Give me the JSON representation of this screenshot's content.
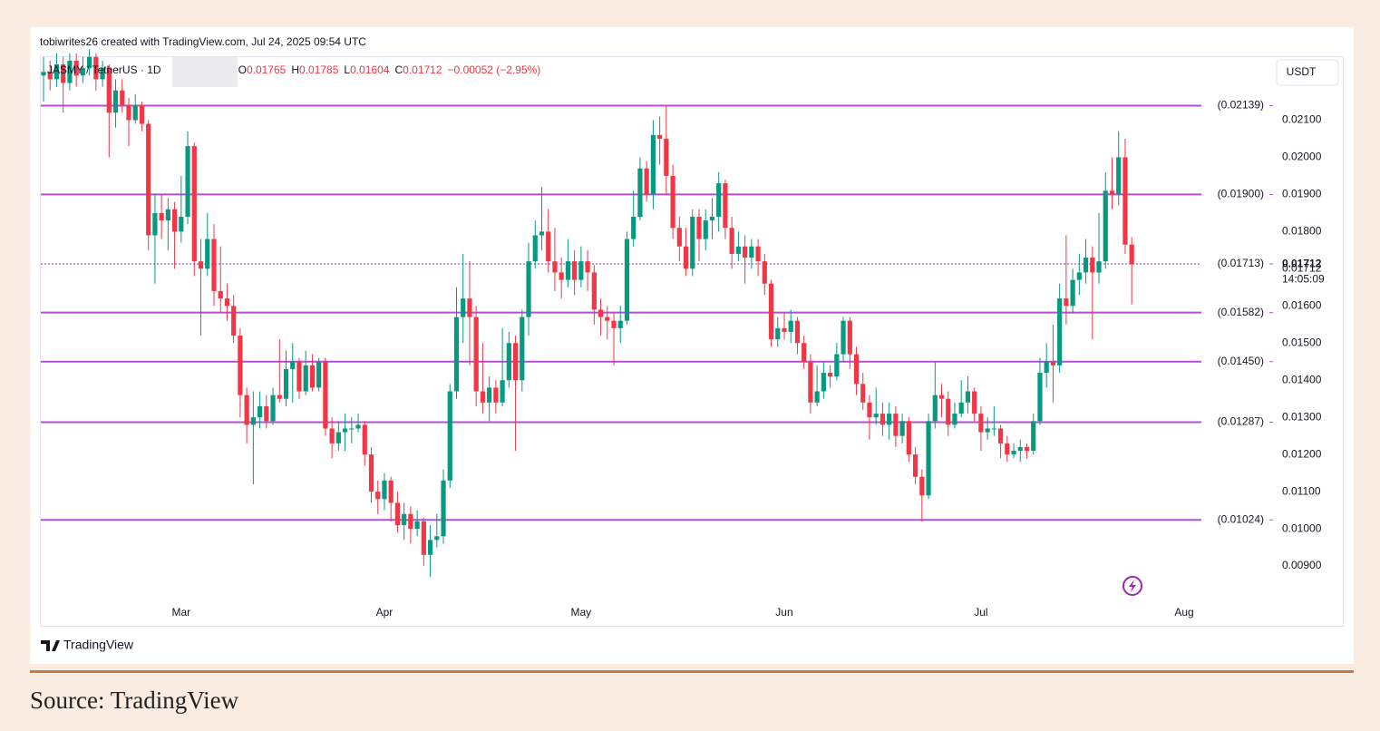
{
  "header": "tobiwrites26 created with TradingView.com, Jul 24, 2025 09:54 UTC",
  "chart_data": {
    "type": "candlestick",
    "symbol": "JASMY / TetherUS · 1D",
    "legend_values": [
      {
        "key": "O",
        "value": 0.01765
      },
      {
        "key": "H",
        "value": 0.01785
      },
      {
        "key": "L",
        "value": 0.01604
      },
      {
        "key": "C",
        "value": 0.01712
      }
    ],
    "change": "−0.00052 (−2.95%)",
    "currency": "USDT",
    "up_color": "#089981",
    "down_color": "#f23645",
    "level_color": "#b44fd1",
    "ylim": [
      0.00739,
      0.02272
    ],
    "yticks": [
      {
        "value": 0.009,
        "label": "0.00900"
      },
      {
        "value": 0.01,
        "label": "0.01000"
      },
      {
        "value": 0.011,
        "label": "0.01100"
      },
      {
        "value": 0.012,
        "label": "0.01200"
      },
      {
        "value": 0.013,
        "label": "0.01300"
      },
      {
        "value": 0.014,
        "label": "0.01400"
      },
      {
        "value": 0.015,
        "label": "0.01500"
      },
      {
        "value": 0.016,
        "label": "0.01600"
      },
      {
        "value": 0.017,
        "label": "0.01712"
      },
      {
        "value": 0.018,
        "label": "0.01800"
      },
      {
        "value": 0.019,
        "label": "0.01900"
      },
      {
        "value": 0.02,
        "label": "0.02000"
      },
      {
        "value": 0.021,
        "label": "0.02100"
      }
    ],
    "levels": [
      {
        "value": 0.02139,
        "label": "(0.02139)"
      },
      {
        "value": 0.019,
        "label": "(0.01900)"
      },
      {
        "value": 0.01713,
        "label": "(0.01713)",
        "dashed": true
      },
      {
        "value": 0.01582,
        "label": "(0.01582)"
      },
      {
        "value": 0.0145,
        "label": "(0.01450)"
      },
      {
        "value": 0.01287,
        "label": "(0.01287)"
      },
      {
        "value": 0.01024,
        "label": "(0.01024)"
      }
    ],
    "last_price": 0.01712,
    "countdown": "14:05:09",
    "categories": [
      null,
      null,
      null,
      null,
      null,
      null,
      null,
      null,
      null,
      null,
      null,
      null,
      null,
      null,
      null,
      null,
      null,
      null,
      null,
      null,
      null,
      "Mar",
      null,
      null,
      null,
      null,
      null,
      null,
      null,
      null,
      null,
      null,
      null,
      null,
      null,
      null,
      null,
      null,
      null,
      null,
      null,
      null,
      null,
      null,
      null,
      null,
      null,
      null,
      null,
      null,
      null,
      null,
      "Apr",
      null,
      null,
      null,
      null,
      null,
      null,
      null,
      null,
      null,
      null,
      null,
      null,
      null,
      null,
      null,
      null,
      null,
      null,
      null,
      null,
      null,
      null,
      null,
      null,
      null,
      null,
      null,
      null,
      null,
      "May",
      null,
      null,
      null,
      null,
      null,
      null,
      null,
      null,
      null,
      null,
      null,
      null,
      null,
      null,
      null,
      null,
      null,
      null,
      null,
      null,
      null,
      null,
      null,
      null,
      null,
      null,
      null,
      null,
      null,
      null,
      "Jun",
      null,
      null,
      null,
      null,
      null,
      null,
      null,
      null,
      null,
      null,
      null,
      null,
      null,
      null,
      null,
      null,
      null,
      null,
      null,
      null,
      null,
      null,
      null,
      null,
      null,
      null,
      null,
      null,
      null,
      "Jul",
      null,
      null,
      null,
      null,
      null,
      null,
      null,
      null,
      null,
      null,
      null,
      null,
      null,
      null,
      null,
      null,
      null,
      null,
      null,
      null,
      null,
      null,
      null,
      null,
      null,
      null,
      null,
      null,
      null,
      null,
      "Aug"
    ],
    "ohlc": [
      [
        0.0222,
        0.0227,
        0.0215,
        0.0223
      ],
      [
        0.0223,
        0.0226,
        0.0218,
        0.0221
      ],
      [
        0.0221,
        0.0228,
        0.0219,
        0.0225
      ],
      [
        0.0225,
        0.0227,
        0.0212,
        0.022
      ],
      [
        0.022,
        0.0228,
        0.0218,
        0.0226
      ],
      [
        0.0226,
        0.0228,
        0.0219,
        0.0222
      ],
      [
        0.0222,
        0.0227,
        0.022,
        0.0224
      ],
      [
        0.0224,
        0.0229,
        0.0222,
        0.0227
      ],
      [
        0.0227,
        0.0228,
        0.0218,
        0.0221
      ],
      [
        0.0221,
        0.0226,
        0.0219,
        0.0224
      ],
      [
        0.0224,
        0.0225,
        0.02,
        0.0212
      ],
      [
        0.0212,
        0.0221,
        0.0208,
        0.0218
      ],
      [
        0.0218,
        0.0221,
        0.0212,
        0.0214
      ],
      [
        0.0214,
        0.0216,
        0.0203,
        0.021
      ],
      [
        0.021,
        0.0217,
        0.0209,
        0.0214
      ],
      [
        0.0214,
        0.0215,
        0.0207,
        0.0209
      ],
      [
        0.0209,
        0.021,
        0.0175,
        0.0179
      ],
      [
        0.0179,
        0.019,
        0.0166,
        0.0185
      ],
      [
        0.0185,
        0.019,
        0.0178,
        0.0183
      ],
      [
        0.0183,
        0.0189,
        0.0175,
        0.0186
      ],
      [
        0.0186,
        0.0188,
        0.017,
        0.018
      ],
      [
        0.018,
        0.0195,
        0.0177,
        0.0184
      ],
      [
        0.0184,
        0.0207,
        0.0182,
        0.0203
      ],
      [
        0.0203,
        0.0204,
        0.0168,
        0.0172
      ],
      [
        0.0172,
        0.0178,
        0.0152,
        0.017
      ],
      [
        0.017,
        0.0185,
        0.0168,
        0.0178
      ],
      [
        0.0178,
        0.0182,
        0.016,
        0.0164
      ],
      [
        0.0164,
        0.0176,
        0.0158,
        0.0162
      ],
      [
        0.0162,
        0.0166,
        0.0156,
        0.016
      ],
      [
        0.016,
        0.0163,
        0.015,
        0.0152
      ],
      [
        0.0152,
        0.0154,
        0.013,
        0.0136
      ],
      [
        0.0136,
        0.0138,
        0.0123,
        0.0128
      ],
      [
        0.0128,
        0.0137,
        0.0112,
        0.013
      ],
      [
        0.013,
        0.0137,
        0.0127,
        0.0133
      ],
      [
        0.0133,
        0.0136,
        0.0127,
        0.0129
      ],
      [
        0.0129,
        0.0138,
        0.0128,
        0.0136
      ],
      [
        0.0136,
        0.0151,
        0.0134,
        0.0135
      ],
      [
        0.0135,
        0.0148,
        0.0133,
        0.0143
      ],
      [
        0.0143,
        0.015,
        0.0134,
        0.0145
      ],
      [
        0.0145,
        0.0146,
        0.0135,
        0.0137
      ],
      [
        0.0137,
        0.0148,
        0.0136,
        0.0144
      ],
      [
        0.0144,
        0.0147,
        0.0137,
        0.0138
      ],
      [
        0.0138,
        0.0146,
        0.0137,
        0.0145
      ],
      [
        0.0145,
        0.0146,
        0.0125,
        0.0127
      ],
      [
        0.0127,
        0.013,
        0.0119,
        0.0123
      ],
      [
        0.0123,
        0.0129,
        0.0121,
        0.0126
      ],
      [
        0.0126,
        0.0131,
        0.0121,
        0.0127
      ],
      [
        0.0127,
        0.013,
        0.0123,
        0.0127
      ],
      [
        0.0127,
        0.0131,
        0.0126,
        0.0128
      ],
      [
        0.0128,
        0.0129,
        0.0117,
        0.012
      ],
      [
        0.012,
        0.0122,
        0.0107,
        0.011
      ],
      [
        0.011,
        0.0113,
        0.0104,
        0.0108
      ],
      [
        0.0108,
        0.0115,
        0.0105,
        0.0113
      ],
      [
        0.0113,
        0.0114,
        0.0102,
        0.0107
      ],
      [
        0.0107,
        0.011,
        0.0099,
        0.0101
      ],
      [
        0.0101,
        0.0107,
        0.0097,
        0.0104
      ],
      [
        0.0104,
        0.0106,
        0.0096,
        0.01
      ],
      [
        0.01,
        0.0105,
        0.0098,
        0.0102
      ],
      [
        0.0102,
        0.0103,
        0.009,
        0.0093
      ],
      [
        0.0093,
        0.0101,
        0.0087,
        0.0097
      ],
      [
        0.0097,
        0.0104,
        0.0095,
        0.0098
      ],
      [
        0.0098,
        0.0116,
        0.0096,
        0.0113
      ],
      [
        0.0113,
        0.0139,
        0.0111,
        0.0137
      ],
      [
        0.0137,
        0.0165,
        0.0135,
        0.0157
      ],
      [
        0.0157,
        0.0174,
        0.015,
        0.0162
      ],
      [
        0.0162,
        0.0172,
        0.0144,
        0.0157
      ],
      [
        0.0157,
        0.016,
        0.0133,
        0.0137
      ],
      [
        0.0137,
        0.015,
        0.0131,
        0.0134
      ],
      [
        0.0134,
        0.0141,
        0.0129,
        0.0138
      ],
      [
        0.0138,
        0.014,
        0.0131,
        0.0134
      ],
      [
        0.0134,
        0.0154,
        0.0133,
        0.014
      ],
      [
        0.014,
        0.0153,
        0.0138,
        0.015
      ],
      [
        0.015,
        0.0152,
        0.0121,
        0.014
      ],
      [
        0.014,
        0.0159,
        0.0137,
        0.0157
      ],
      [
        0.0157,
        0.0177,
        0.0152,
        0.0172
      ],
      [
        0.0172,
        0.0183,
        0.017,
        0.0179
      ],
      [
        0.0179,
        0.0192,
        0.0175,
        0.018
      ],
      [
        0.018,
        0.0186,
        0.0169,
        0.0172
      ],
      [
        0.0172,
        0.0181,
        0.0164,
        0.0169
      ],
      [
        0.0169,
        0.0173,
        0.0162,
        0.0167
      ],
      [
        0.0167,
        0.0178,
        0.0165,
        0.0172
      ],
      [
        0.0172,
        0.0175,
        0.0163,
        0.0167
      ],
      [
        0.0167,
        0.0176,
        0.0165,
        0.0172
      ],
      [
        0.0172,
        0.0175,
        0.0164,
        0.0169
      ],
      [
        0.0169,
        0.0171,
        0.0155,
        0.0159
      ],
      [
        0.0159,
        0.0162,
        0.0152,
        0.0157
      ],
      [
        0.0157,
        0.016,
        0.0151,
        0.0156
      ],
      [
        0.0156,
        0.0158,
        0.0144,
        0.0154
      ],
      [
        0.0154,
        0.016,
        0.015,
        0.0156
      ],
      [
        0.0156,
        0.018,
        0.0155,
        0.0178
      ],
      [
        0.0178,
        0.0191,
        0.0176,
        0.0184
      ],
      [
        0.0184,
        0.02,
        0.0183,
        0.0197
      ],
      [
        0.0197,
        0.0199,
        0.0188,
        0.019
      ],
      [
        0.019,
        0.021,
        0.0186,
        0.0206
      ],
      [
        0.0206,
        0.0211,
        0.0198,
        0.0205
      ],
      [
        0.0205,
        0.0214,
        0.019,
        0.0195
      ],
      [
        0.0195,
        0.0198,
        0.0178,
        0.0181
      ],
      [
        0.0181,
        0.0184,
        0.0172,
        0.0176
      ],
      [
        0.0176,
        0.0181,
        0.0168,
        0.017
      ],
      [
        0.017,
        0.0186,
        0.0168,
        0.0184
      ],
      [
        0.0184,
        0.0186,
        0.0172,
        0.0178
      ],
      [
        0.0178,
        0.0186,
        0.0175,
        0.0183
      ],
      [
        0.0183,
        0.0189,
        0.0178,
        0.0184
      ],
      [
        0.0184,
        0.0196,
        0.018,
        0.0193
      ],
      [
        0.0193,
        0.0194,
        0.0178,
        0.0181
      ],
      [
        0.0181,
        0.0184,
        0.017,
        0.0174
      ],
      [
        0.0174,
        0.018,
        0.0172,
        0.0176
      ],
      [
        0.0176,
        0.0179,
        0.0166,
        0.0173
      ],
      [
        0.0173,
        0.0178,
        0.017,
        0.0176
      ],
      [
        0.0176,
        0.0178,
        0.0168,
        0.0172
      ],
      [
        0.0172,
        0.0174,
        0.0163,
        0.0166
      ],
      [
        0.0166,
        0.0167,
        0.0149,
        0.0151
      ],
      [
        0.0151,
        0.0157,
        0.0149,
        0.0154
      ],
      [
        0.0154,
        0.0158,
        0.0151,
        0.0153
      ],
      [
        0.0153,
        0.0159,
        0.015,
        0.0156
      ],
      [
        0.0156,
        0.0157,
        0.0147,
        0.015
      ],
      [
        0.015,
        0.0152,
        0.0143,
        0.0145
      ],
      [
        0.0145,
        0.0147,
        0.0131,
        0.0134
      ],
      [
        0.0134,
        0.0144,
        0.0133,
        0.0137
      ],
      [
        0.0137,
        0.0145,
        0.0135,
        0.0142
      ],
      [
        0.0142,
        0.0144,
        0.0138,
        0.0141
      ],
      [
        0.0141,
        0.015,
        0.014,
        0.0147
      ],
      [
        0.0147,
        0.0157,
        0.0145,
        0.0156
      ],
      [
        0.0156,
        0.0157,
        0.0143,
        0.0147
      ],
      [
        0.0147,
        0.0149,
        0.0136,
        0.0139
      ],
      [
        0.0139,
        0.0142,
        0.0132,
        0.0134
      ],
      [
        0.0134,
        0.0136,
        0.0124,
        0.013
      ],
      [
        0.013,
        0.0138,
        0.0128,
        0.0131
      ],
      [
        0.0131,
        0.0134,
        0.0125,
        0.0128
      ],
      [
        0.0128,
        0.0134,
        0.0124,
        0.0131
      ],
      [
        0.0131,
        0.0133,
        0.0122,
        0.0125
      ],
      [
        0.0125,
        0.0131,
        0.0123,
        0.0129
      ],
      [
        0.0129,
        0.013,
        0.0118,
        0.012
      ],
      [
        0.012,
        0.0122,
        0.0112,
        0.0114
      ],
      [
        0.0114,
        0.0116,
        0.0102,
        0.0109
      ],
      [
        0.0109,
        0.0131,
        0.0108,
        0.0129
      ],
      [
        0.0129,
        0.0145,
        0.0127,
        0.0136
      ],
      [
        0.0136,
        0.0139,
        0.013,
        0.0135
      ],
      [
        0.0135,
        0.0137,
        0.0125,
        0.0128
      ],
      [
        0.0128,
        0.0134,
        0.0127,
        0.0131
      ],
      [
        0.0131,
        0.014,
        0.013,
        0.0134
      ],
      [
        0.0134,
        0.0141,
        0.0131,
        0.0137
      ],
      [
        0.0137,
        0.0138,
        0.0129,
        0.0131
      ],
      [
        0.0131,
        0.0133,
        0.0121,
        0.0126
      ],
      [
        0.0126,
        0.013,
        0.0124,
        0.0127
      ],
      [
        0.0127,
        0.0133,
        0.0125,
        0.0127
      ],
      [
        0.0127,
        0.0128,
        0.0119,
        0.0123
      ],
      [
        0.0123,
        0.0125,
        0.0118,
        0.012
      ],
      [
        0.012,
        0.0123,
        0.0119,
        0.0121
      ],
      [
        0.0121,
        0.0124,
        0.0118,
        0.0122
      ],
      [
        0.0122,
        0.0123,
        0.0119,
        0.0121
      ],
      [
        0.0121,
        0.0131,
        0.012,
        0.0129
      ],
      [
        0.0129,
        0.0146,
        0.0128,
        0.0142
      ],
      [
        0.0142,
        0.015,
        0.0138,
        0.0145
      ],
      [
        0.0145,
        0.0155,
        0.0134,
        0.0144
      ],
      [
        0.0144,
        0.0166,
        0.0142,
        0.0162
      ],
      [
        0.0162,
        0.0179,
        0.0155,
        0.016
      ],
      [
        0.016,
        0.017,
        0.0158,
        0.0167
      ],
      [
        0.0167,
        0.0174,
        0.0163,
        0.0169
      ],
      [
        0.0169,
        0.0178,
        0.0166,
        0.0173
      ],
      [
        0.0173,
        0.0176,
        0.0151,
        0.0169
      ],
      [
        0.0169,
        0.0185,
        0.0166,
        0.0172
      ],
      [
        0.0172,
        0.0196,
        0.017,
        0.0191
      ],
      [
        0.0191,
        0.02,
        0.0186,
        0.019
      ],
      [
        0.019,
        0.0207,
        0.0187,
        0.02
      ],
      [
        0.02,
        0.0205,
        0.0174,
        0.01765
      ],
      [
        0.01765,
        0.01785,
        0.01604,
        0.01712
      ],
      null,
      null,
      null,
      null,
      null,
      null,
      null,
      null
    ]
  },
  "watermark": "TradingView",
  "source": "Source: TradingView"
}
